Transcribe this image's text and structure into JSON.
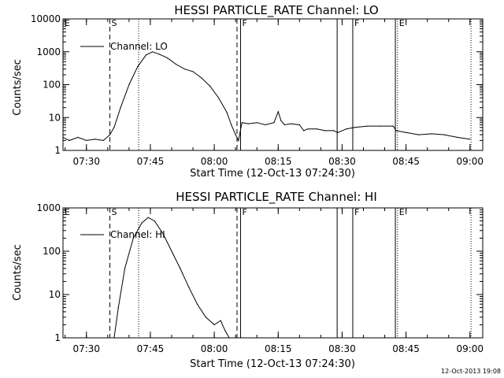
{
  "chart_data": [
    {
      "type": "line",
      "title": "HESSI PARTICLE_RATE Channel: LO",
      "xlabel": "Start Time (12-Oct-13 07:24:30)",
      "ylabel": "Counts/sec",
      "yscale": "log",
      "ylim": [
        1,
        10000
      ],
      "xlim_minutes_after_0724_30": [
        0,
        98.5
      ],
      "x_tick_labels": [
        "07:30",
        "07:45",
        "08:00",
        "08:15",
        "08:30",
        "08:45",
        "09:00"
      ],
      "y_tick_labels": [
        "1",
        "10",
        "100",
        "1000",
        "10000"
      ],
      "legend": {
        "placement": "top-left",
        "entries": [
          "Channel: LO"
        ]
      },
      "grid": false,
      "markers": [
        {
          "label": "E",
          "time": "07:24:30",
          "style": "dotted"
        },
        {
          "label": "S",
          "time": "07:35:30",
          "style": "dashed"
        },
        {
          "label": "",
          "time": "07:42:15",
          "style": "dotted"
        },
        {
          "label": "",
          "time": "08:05:20",
          "style": "dashed"
        },
        {
          "label": "F",
          "time": "08:06:10",
          "style": "solid"
        },
        {
          "label": "",
          "time": "08:28:50",
          "style": "solid"
        },
        {
          "label": "F",
          "time": "08:32:30",
          "style": "solid"
        },
        {
          "label": "",
          "time": "08:42:30",
          "style": "solid"
        },
        {
          "label": "E",
          "time": "08:43:00",
          "style": "dotted"
        },
        {
          "label": "",
          "time": "09:00:15",
          "style": "dotted"
        }
      ],
      "series": [
        {
          "name": "Channel: LO",
          "x": [
            "07:24:30",
            "07:26:00",
            "07:28:00",
            "07:30:00",
            "07:32:00",
            "07:34:00",
            "07:35:30",
            "07:36:30",
            "07:38:00",
            "07:40:00",
            "07:42:00",
            "07:44:00",
            "07:45:30",
            "07:47:00",
            "07:49:00",
            "07:51:00",
            "07:53:00",
            "07:55:00",
            "07:57:00",
            "07:59:00",
            "08:01:00",
            "08:03:00",
            "08:04:00",
            "08:05:00",
            "08:05:40",
            "08:06:30",
            "08:08:00",
            "08:10:00",
            "08:12:00",
            "08:14:00",
            "08:15:00",
            "08:15:40",
            "08:16:30",
            "08:18:00",
            "08:20:00",
            "08:21:00",
            "08:22:00",
            "08:24:00",
            "08:26:00",
            "08:28:00",
            "08:29:00",
            "08:31:00",
            "08:33:00",
            "08:36:00",
            "08:39:00",
            "08:42:00",
            "08:42:40",
            "08:45:00",
            "08:48:00",
            "08:51:00",
            "08:54:00",
            "08:57:00",
            "09:00:00"
          ],
          "y": [
            2.5,
            2.0,
            2.5,
            2.0,
            2.2,
            2.0,
            3,
            5,
            20,
            100,
            350,
            800,
            1000,
            850,
            650,
            420,
            300,
            250,
            160,
            90,
            40,
            14,
            6,
            3,
            2.0,
            7,
            6.5,
            7,
            6,
            7,
            15,
            8,
            6,
            6.5,
            6,
            4,
            4.5,
            4.5,
            4,
            4,
            3.5,
            4.5,
            5,
            5.5,
            5.5,
            5.5,
            4,
            3.5,
            3,
            3.2,
            3,
            2.5,
            2.2
          ]
        }
      ]
    },
    {
      "type": "line",
      "title": "HESSI PARTICLE_RATE Channel: HI",
      "xlabel": "Start Time (12-Oct-13 07:24:30)",
      "ylabel": "Counts/sec",
      "yscale": "log",
      "ylim": [
        1,
        1000
      ],
      "xlim_minutes_after_0724_30": [
        0,
        98.5
      ],
      "x_tick_labels": [
        "07:30",
        "07:45",
        "08:00",
        "08:15",
        "08:30",
        "08:45",
        "09:00"
      ],
      "y_tick_labels": [
        "1",
        "10",
        "100",
        "1000"
      ],
      "legend": {
        "placement": "top-left",
        "entries": [
          "Channel: HI"
        ]
      },
      "grid": false,
      "markers": [
        {
          "label": "E",
          "time": "07:24:30",
          "style": "dotted"
        },
        {
          "label": "S",
          "time": "07:35:30",
          "style": "dashed"
        },
        {
          "label": "",
          "time": "07:42:15",
          "style": "dotted"
        },
        {
          "label": "",
          "time": "08:05:20",
          "style": "dashed"
        },
        {
          "label": "F",
          "time": "08:06:10",
          "style": "solid"
        },
        {
          "label": "",
          "time": "08:28:50",
          "style": "solid"
        },
        {
          "label": "F",
          "time": "08:32:30",
          "style": "solid"
        },
        {
          "label": "",
          "time": "08:42:30",
          "style": "solid"
        },
        {
          "label": "E",
          "time": "08:43:00",
          "style": "dotted"
        },
        {
          "label": "",
          "time": "09:00:15",
          "style": "dotted"
        }
      ],
      "series": [
        {
          "name": "Channel: HI",
          "x": [
            "07:36:30",
            "07:37:30",
            "07:39:00",
            "07:41:00",
            "07:43:00",
            "07:44:30",
            "07:46:00",
            "07:48:00",
            "07:50:00",
            "07:52:00",
            "07:54:00",
            "07:56:00",
            "07:58:00",
            "08:00:00",
            "08:01:30",
            "08:02:30",
            "08:03:30"
          ],
          "y": [
            1,
            5,
            40,
            200,
            450,
            600,
            500,
            250,
            100,
            40,
            15,
            6,
            3,
            2,
            2.5,
            1.5,
            1
          ]
        }
      ]
    }
  ],
  "timestamp": "12-Oct-2013 19:08"
}
